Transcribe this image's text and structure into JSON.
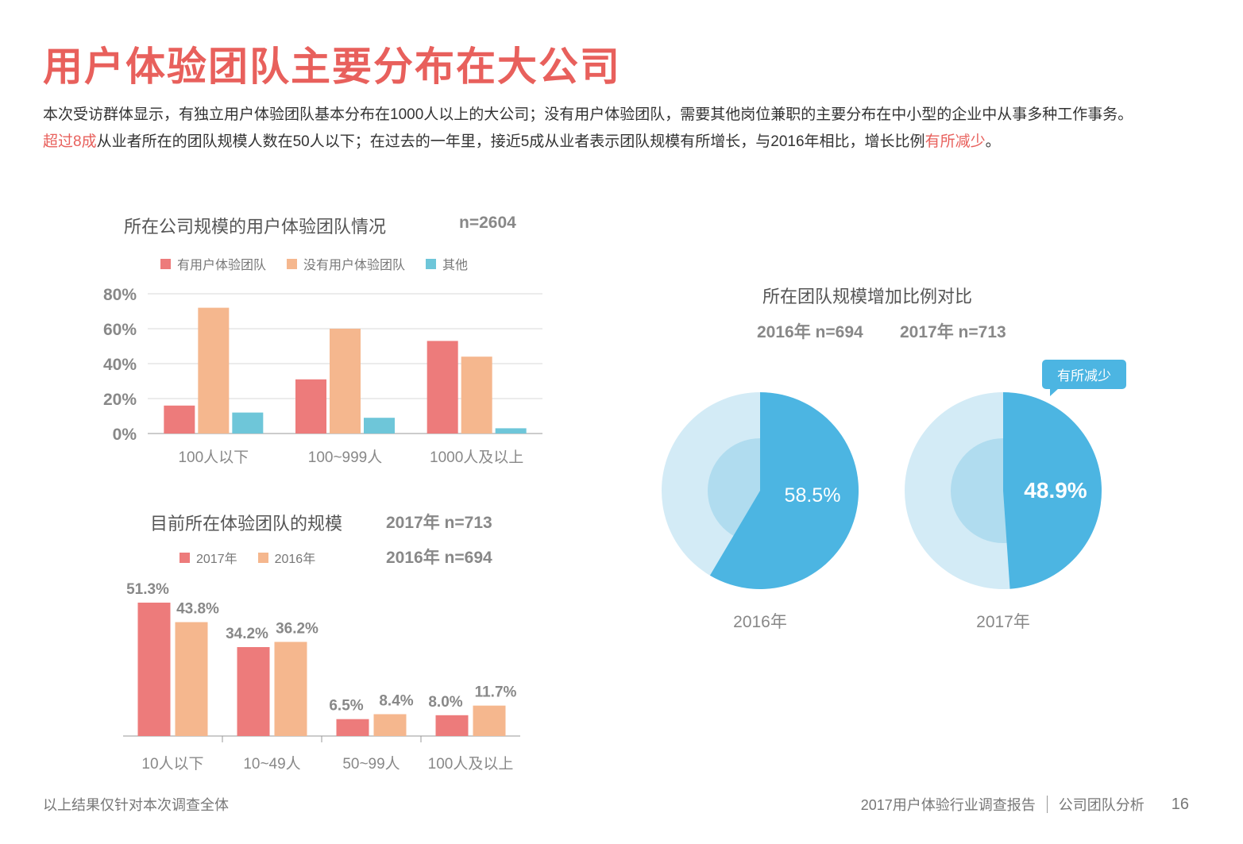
{
  "page": {
    "title": "用户体验团队主要分布在大公司",
    "intro_line1": "本次受访群体显示，有独立用户体验团队基本分布在1000人以上的大公司；没有用户体验团队，需要其他岗位兼职的主要分布在中小型的企业中从事多种工作事务。",
    "intro_hl1": "超过8成",
    "intro_mid": "从业者所在的团队规模人数在50人以下；在过去的一年里，接近5成从业者表示团队规模有所增长，与2016年相比，增长比例",
    "intro_hl2": "有所减少",
    "intro_end": "。"
  },
  "footer": {
    "note": "以上结果仅针对本次调查全体",
    "report": "2017用户体验行业调查报告",
    "section": "公司团队分析",
    "page_number": "16"
  },
  "colors": {
    "red": "#ed7b7b",
    "orange": "#f5b78e",
    "teal": "#6ec6d9",
    "pie_light": "#d3ebf6",
    "pie_mid": "#b0dcef",
    "pie_main": "#4cb5e2",
    "title_red": "#e8605c"
  },
  "chart_data": [
    {
      "type": "bar",
      "title": "所在公司规模的用户体验团队情况",
      "n_label": "n=2604",
      "categories": [
        "100人以下",
        "100~999人",
        "1000人及以上"
      ],
      "series": [
        {
          "name": "有用户体验团队",
          "values": [
            16,
            31,
            53
          ]
        },
        {
          "name": "没有用户体验团队",
          "values": [
            72,
            60,
            44
          ]
        },
        {
          "name": "其他",
          "values": [
            12,
            9,
            3
          ]
        }
      ],
      "ylim": [
        0,
        80
      ],
      "yticks": [
        "0%",
        "20%",
        "40%",
        "60%",
        "80%"
      ],
      "grid": true,
      "legend": "top"
    },
    {
      "type": "bar",
      "title": "目前所在体验团队的规模",
      "n_label_2017": "2017年 n=713",
      "n_label_2016": "2016年 n=694",
      "categories": [
        "10人以下",
        "10~49人",
        "50~99人",
        "100人及以上"
      ],
      "series": [
        {
          "name": "2017年",
          "values": [
            51.3,
            34.2,
            6.5,
            8.0
          ],
          "labels": [
            "51.3%",
            "34.2%",
            "6.5%",
            "8.0%"
          ]
        },
        {
          "name": "2016年",
          "values": [
            43.8,
            36.2,
            8.4,
            11.7
          ],
          "labels": [
            "43.8%",
            "36.2%",
            "8.4%",
            "11.7%"
          ]
        }
      ],
      "ylim": [
        0,
        60
      ],
      "grid": false,
      "legend": "top"
    },
    {
      "type": "pie",
      "title": "所在团队规模增加比例对比",
      "n_label_2016": "2016年 n=694",
      "n_label_2017": "2017年 n=713",
      "pies": [
        {
          "label": "2016年",
          "value": 58.5,
          "value_label": "58.5%"
        },
        {
          "label": "2017年",
          "value": 48.9,
          "value_label": "48.9%"
        }
      ],
      "callout": "有所减少"
    }
  ]
}
